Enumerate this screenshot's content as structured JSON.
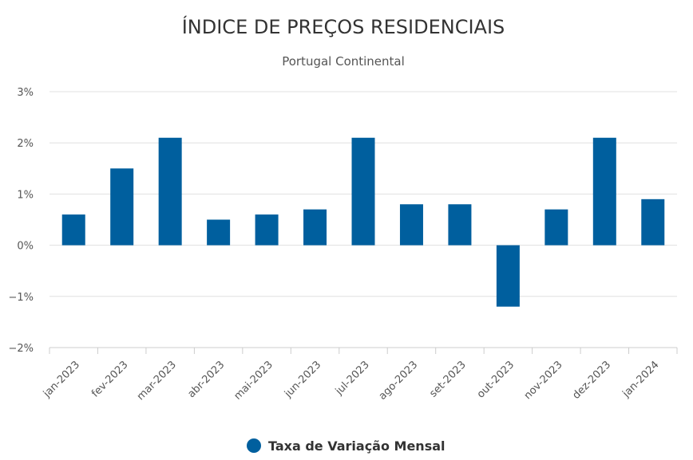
{
  "chart_data": {
    "type": "bar",
    "title": "ÍNDICE DE PREÇOS RESIDENCIAIS",
    "subtitle": "Portugal Continental",
    "categories": [
      "jan-2023",
      "fev-2023",
      "mar-2023",
      "abr-2023",
      "mai-2023",
      "jun-2023",
      "jul-2023",
      "ago-2023",
      "set-2023",
      "out-2023",
      "nov-2023",
      "dez-2023",
      "jan-2024"
    ],
    "series": [
      {
        "name": "Taxa de Variação Mensal",
        "values": [
          0.6,
          1.5,
          2.1,
          0.5,
          0.6,
          0.7,
          2.1,
          0.8,
          0.8,
          -1.2,
          0.7,
          2.1,
          0.9
        ]
      }
    ],
    "ylim": [
      -2,
      3
    ],
    "yticks": [
      3,
      2,
      1,
      0,
      -1,
      -2
    ],
    "ytick_labels": [
      "3%",
      "2%",
      "1%",
      "0%",
      "−1%",
      "−2%"
    ],
    "xlabel": "",
    "ylabel": "",
    "grid": true,
    "legend": "bottom-center",
    "colors": {
      "bar": "#005f9e"
    }
  }
}
